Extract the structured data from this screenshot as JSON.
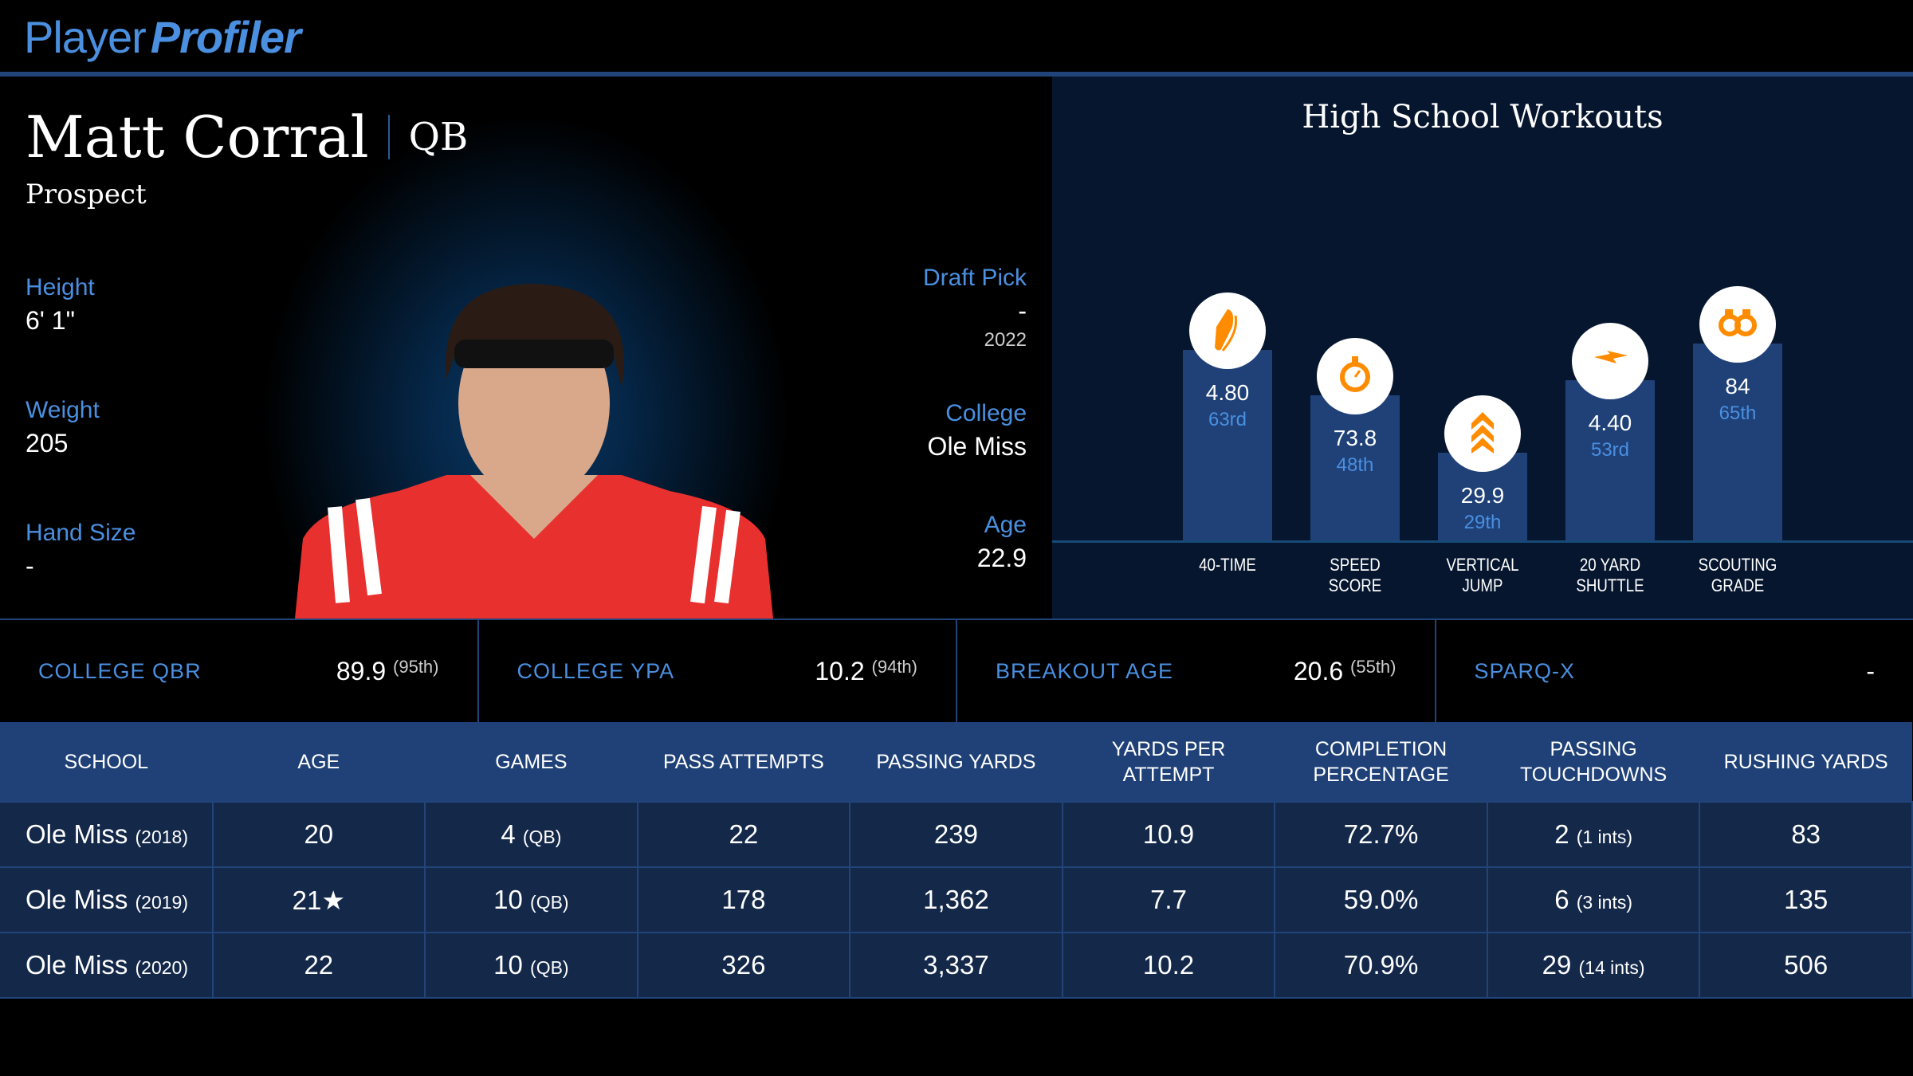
{
  "logo": {
    "part1": "Player",
    "part2": "Profiler"
  },
  "player": {
    "name": "Matt Corral",
    "position": "QB",
    "status": "Prospect"
  },
  "bio": {
    "height": {
      "label": "Height",
      "value": "6' 1\""
    },
    "weight": {
      "label": "Weight",
      "value": "205"
    },
    "hand": {
      "label": "Hand Size",
      "value": "-"
    },
    "draft": {
      "label": "Draft Pick",
      "value": "-",
      "year": "2022"
    },
    "college": {
      "label": "College",
      "value": "Ole Miss"
    },
    "age": {
      "label": "Age",
      "value": "22.9"
    }
  },
  "workouts": {
    "title": "High School Workouts",
    "colors": {
      "icon": "#ff8c00",
      "bar": "#1f4178"
    },
    "items": [
      {
        "label1": "40-TIME",
        "label2": "",
        "value": "4.80",
        "pct": "63rd",
        "pctNum": 63,
        "icon": "shoe-icon"
      },
      {
        "label1": "SPEED",
        "label2": "SCORE",
        "value": "73.8",
        "pct": "48th",
        "pctNum": 48,
        "icon": "stopwatch-icon"
      },
      {
        "label1": "VERTICAL",
        "label2": "JUMP",
        "value": "29.9",
        "pct": "29th",
        "pctNum": 29,
        "icon": "chevrons-up-icon"
      },
      {
        "label1": "20 YARD",
        "label2": "SHUTTLE",
        "value": "4.40",
        "pct": "53rd",
        "pctNum": 53,
        "icon": "lightning-icon"
      },
      {
        "label1": "SCOUTING",
        "label2": "GRADE",
        "value": "84",
        "pct": "65th",
        "pctNum": 65,
        "icon": "binoculars-icon"
      }
    ]
  },
  "stats": [
    {
      "label": "COLLEGE QBR",
      "value": "89.9",
      "pct": "(95th)"
    },
    {
      "label": "COLLEGE YPA",
      "value": "10.2",
      "pct": "(94th)"
    },
    {
      "label": "BREAKOUT AGE",
      "value": "20.6",
      "pct": "(55th)"
    },
    {
      "label": "SPARQ-X",
      "value": "-",
      "pct": ""
    }
  ],
  "table": {
    "headers": [
      "SCHOOL",
      "AGE",
      "GAMES",
      "PASS ATTEMPTS",
      "PASSING YARDS",
      "YARDS PER ATTEMPT",
      "COMPLETION PERCENTAGE",
      "PASSING TOUCHDOWNS",
      "RUSHING YARDS"
    ],
    "rows": [
      {
        "school": "Ole Miss",
        "year": "(2018)",
        "age": "20",
        "star": "",
        "games": "4",
        "gpos": "(QB)",
        "att": "22",
        "yds": "239",
        "ypa": "10.9",
        "cmp": "72.7%",
        "td": "2",
        "ints": "(1 ints)",
        "rush": "83"
      },
      {
        "school": "Ole Miss",
        "year": "(2019)",
        "age": "21",
        "star": "★",
        "games": "10",
        "gpos": "(QB)",
        "att": "178",
        "yds": "1,362",
        "ypa": "7.7",
        "cmp": "59.0%",
        "td": "6",
        "ints": "(3 ints)",
        "rush": "135"
      },
      {
        "school": "Ole Miss",
        "year": "(2020)",
        "age": "22",
        "star": "",
        "games": "10",
        "gpos": "(QB)",
        "att": "326",
        "yds": "3,337",
        "ypa": "10.2",
        "cmp": "70.9%",
        "td": "29",
        "ints": "(14 ints)",
        "rush": "506"
      }
    ]
  }
}
